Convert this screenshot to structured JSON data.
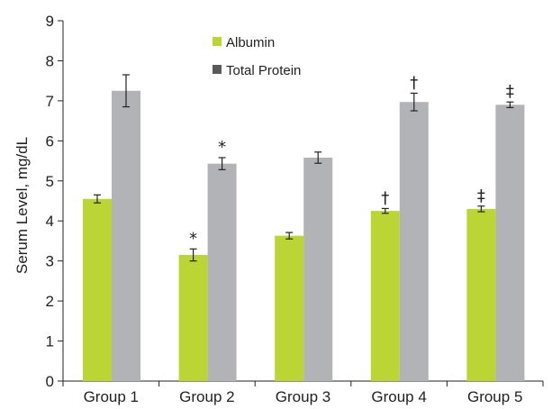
{
  "chart_data": {
    "type": "bar",
    "ylabel": "Serum Level, mg/dL",
    "xlabel": "",
    "ylim": [
      0,
      9
    ],
    "yticks": [
      "0",
      "1",
      "2",
      "3",
      "4",
      "5",
      "6",
      "7",
      "8",
      "9"
    ],
    "categories": [
      "Group 1",
      "Group 2",
      "Group 3",
      "Group 4",
      "Group 5"
    ],
    "legend_position": "top-center",
    "grid": false,
    "series": [
      {
        "name": "Albumin",
        "color": "#bbd534",
        "values": [
          4.55,
          3.15,
          3.63,
          4.25,
          4.3
        ],
        "errors": [
          0.1,
          0.15,
          0.08,
          0.06,
          0.07
        ],
        "annotations": [
          "",
          "*",
          "",
          "†",
          "‡"
        ]
      },
      {
        "name": "Total Protein",
        "color": "#b2b3b7",
        "values": [
          7.25,
          5.43,
          5.58,
          6.97,
          6.9
        ],
        "errors": [
          0.4,
          0.15,
          0.14,
          0.22,
          0.07
        ],
        "annotations": [
          "",
          "*",
          "",
          "†",
          "‡"
        ]
      }
    ]
  }
}
